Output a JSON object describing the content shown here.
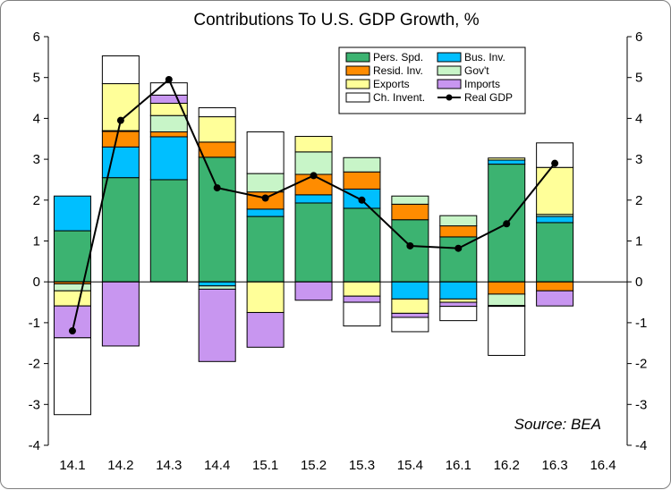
{
  "chart_data": {
    "type": "bar",
    "stacked": true,
    "title": "Contributions To U.S. GDP Growth, %",
    "source_note": "Source: BEA",
    "categories": [
      "14.1",
      "14.2",
      "14.3",
      "14.4",
      "15.1",
      "15.2",
      "15.3",
      "15.4",
      "16.1",
      "16.2",
      "16.3",
      "16.4"
    ],
    "ylim": [
      -4,
      6
    ],
    "y_ticks": [
      "-4",
      "-3",
      "-2",
      "-1",
      "0",
      "1",
      "2",
      "3",
      "4",
      "5",
      "6"
    ],
    "right_axis": true,
    "grid": false,
    "legend_position": "top-right",
    "series": [
      {
        "name": "Pers. Spd.",
        "color": "#3cb371",
        "values": [
          1.25,
          2.55,
          2.5,
          3.05,
          1.6,
          1.93,
          1.8,
          1.52,
          1.1,
          2.88,
          1.45,
          null
        ]
      },
      {
        "name": "Bus. Inv.",
        "color": "#00bfff",
        "values": [
          0.85,
          0.75,
          1.05,
          -0.1,
          0.18,
          0.2,
          0.47,
          -0.42,
          -0.42,
          0.1,
          0.15,
          null
        ]
      },
      {
        "name": "Resid. Inv.",
        "color": "#ff8c00",
        "values": [
          -0.05,
          0.38,
          0.12,
          0.37,
          0.42,
          0.5,
          0.42,
          0.38,
          0.27,
          -0.3,
          -0.22,
          null
        ]
      },
      {
        "name": "Gov't",
        "color": "#c8f5c8",
        "values": [
          -0.17,
          0.02,
          0.4,
          -0.08,
          0.45,
          0.55,
          0.35,
          0.2,
          0.25,
          -0.28,
          0.05,
          null
        ]
      },
      {
        "name": "Exports",
        "color": "#ffff99",
        "values": [
          -0.37,
          1.15,
          0.3,
          0.62,
          -0.75,
          0.38,
          -0.35,
          -0.35,
          -0.08,
          0.05,
          1.15,
          null
        ]
      },
      {
        "name": "Imports",
        "color": "#c896f0",
        "values": [
          -0.78,
          -1.57,
          0.2,
          -1.77,
          -0.85,
          -0.45,
          -0.15,
          -0.1,
          -0.1,
          -0.02,
          -0.37,
          null
        ]
      },
      {
        "name": "Ch. Invent.",
        "color": "#ffffff",
        "values": [
          -1.88,
          0.68,
          0.3,
          0.22,
          1.02,
          0.0,
          -0.58,
          -0.35,
          -0.35,
          -1.2,
          0.6,
          null
        ]
      }
    ],
    "line_series": {
      "name": "Real GDP",
      "color": "#000000",
      "values": [
        -1.2,
        3.95,
        4.95,
        2.3,
        2.05,
        2.6,
        2.0,
        0.88,
        0.82,
        1.42,
        2.9,
        null
      ]
    }
  }
}
